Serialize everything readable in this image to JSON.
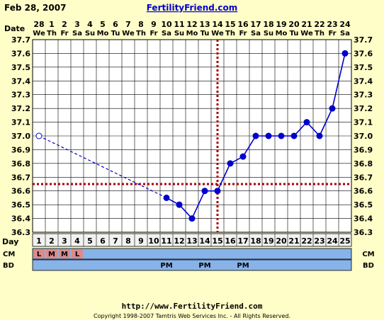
{
  "header": {
    "date": "Feb 28, 2007",
    "site_title": "FertilityFriend.com"
  },
  "row_labels": {
    "date": "Date",
    "day": "Day",
    "cm": "CM",
    "bd": "BD"
  },
  "footer": {
    "url": "http://www.FertilityFriend.com",
    "copyright": "Copyright 1998-2007 Tamtris Web Services Inc. - All Rights Reserved."
  },
  "colors": {
    "background": "#fffdc8",
    "plot_bg": "#ffffff",
    "grid": "#000000",
    "line": "#0000cc",
    "coverline": "#aa0000",
    "cm_bar": "#87b3e8",
    "cm_cell": "#dd8a8a",
    "day_row": "#f2f2f2"
  },
  "chart_data": {
    "type": "line",
    "title": "",
    "xlabel": "Day",
    "ylabel": "",
    "ylim": [
      36.3,
      37.7
    ],
    "yticks": [
      "36.3",
      "36.4",
      "36.5",
      "36.6",
      "36.7",
      "36.8",
      "36.9",
      "37.0",
      "37.1",
      "37.2",
      "37.3",
      "37.4",
      "37.5",
      "37.6",
      "37.7"
    ],
    "dates": [
      "28",
      "1",
      "2",
      "3",
      "4",
      "5",
      "6",
      "7",
      "8",
      "9",
      "10",
      "11",
      "12",
      "13",
      "14",
      "15",
      "16",
      "17",
      "18",
      "19",
      "20",
      "21",
      "22",
      "23",
      "24"
    ],
    "weekdays": [
      "We",
      "Th",
      "Fr",
      "Sa",
      "Su",
      "Mo",
      "Tu",
      "We",
      "Th",
      "Fr",
      "Sa",
      "Su",
      "Mo",
      "Tu",
      "We",
      "Th",
      "Fr",
      "Sa",
      "Su",
      "Mo",
      "Tu",
      "We",
      "Th",
      "Fr",
      "Sa"
    ],
    "days": [
      1,
      2,
      3,
      4,
      5,
      6,
      7,
      8,
      9,
      10,
      11,
      12,
      13,
      14,
      15,
      16,
      17,
      18,
      19,
      20,
      21,
      22,
      23,
      24,
      25
    ],
    "temperatures": [
      37.0,
      null,
      null,
      null,
      null,
      null,
      null,
      null,
      null,
      null,
      36.55,
      36.5,
      36.4,
      36.6,
      36.6,
      36.8,
      36.85,
      37.0,
      37.0,
      37.0,
      37.0,
      37.1,
      37.0,
      37.2,
      37.6
    ],
    "open_points": [
      1
    ],
    "coverline": 36.65,
    "ovulation_day": 15,
    "cm": [
      "L",
      "M",
      "M",
      "L",
      "",
      "",
      "",
      "",
      "",
      "",
      "",
      "",
      "",
      "",
      "",
      "",
      "",
      "",
      "",
      "",
      "",
      "",
      "",
      "",
      ""
    ],
    "bd": [
      "",
      "",
      "",
      "",
      "",
      "",
      "",
      "",
      "",
      "",
      "PM",
      "",
      "",
      "PM",
      "",
      "",
      "PM",
      "",
      "",
      "",
      "",
      "",
      "",
      "",
      ""
    ]
  }
}
